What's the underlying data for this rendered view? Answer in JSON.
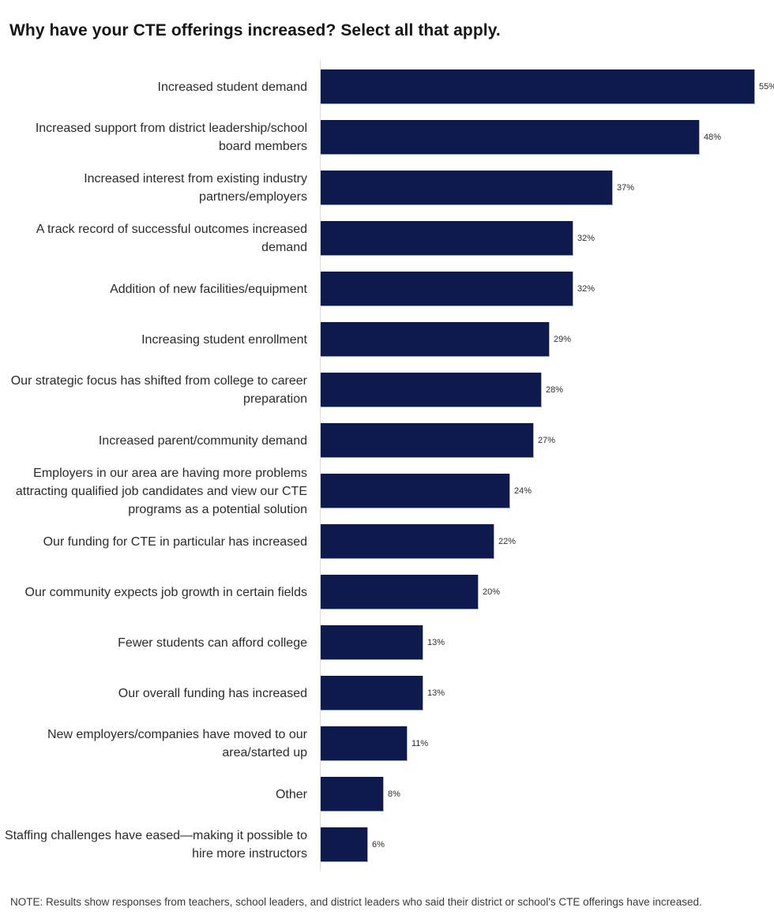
{
  "title": "Why have your CTE offerings increased? Select all that apply.",
  "note": "NOTE: Results show responses from teachers, school leaders, and district leaders who said their district or school's CTE offerings have increased.",
  "colors": {
    "bar": "#0e1a4c",
    "axis": "#dedede",
    "title_text": "#151515",
    "category_text": "#2b2b2b",
    "value_text": "#2e2e2e",
    "note_text": "#3a3a3a"
  },
  "chart_data": {
    "type": "bar",
    "orientation": "horizontal",
    "title": "Why have your CTE offerings increased? Select all that apply.",
    "categories": [
      "Increased student demand",
      "Increased support from district leadership/school board members",
      "Increased interest from existing industry partners/employers",
      "A track record of successful outcomes increased demand",
      "Addition of new facilities/equipment",
      "Increasing student enrollment",
      "Our strategic focus has shifted from college to career preparation",
      "Increased parent/community demand",
      "Employers in our area are having more problems attracting qualified job candidates and view our CTE programs as a potential solution",
      "Our funding for CTE in particular has increased",
      "Our community expects job growth in certain fields",
      "Fewer students can afford college",
      "Our overall funding has increased",
      "New employers/companies have moved to our area/started up",
      "Other",
      "Staffing challenges have eased—making it possible to hire more instructors"
    ],
    "values": [
      55,
      48,
      37,
      32,
      32,
      29,
      28,
      27,
      24,
      22,
      20,
      13,
      13,
      11,
      8,
      6
    ],
    "value_suffix": "%",
    "xlabel": "",
    "ylabel": "",
    "xlim": [
      0,
      57.4
    ],
    "grid": false,
    "legend": false,
    "bar_pixels_per_percent": 10.0
  }
}
